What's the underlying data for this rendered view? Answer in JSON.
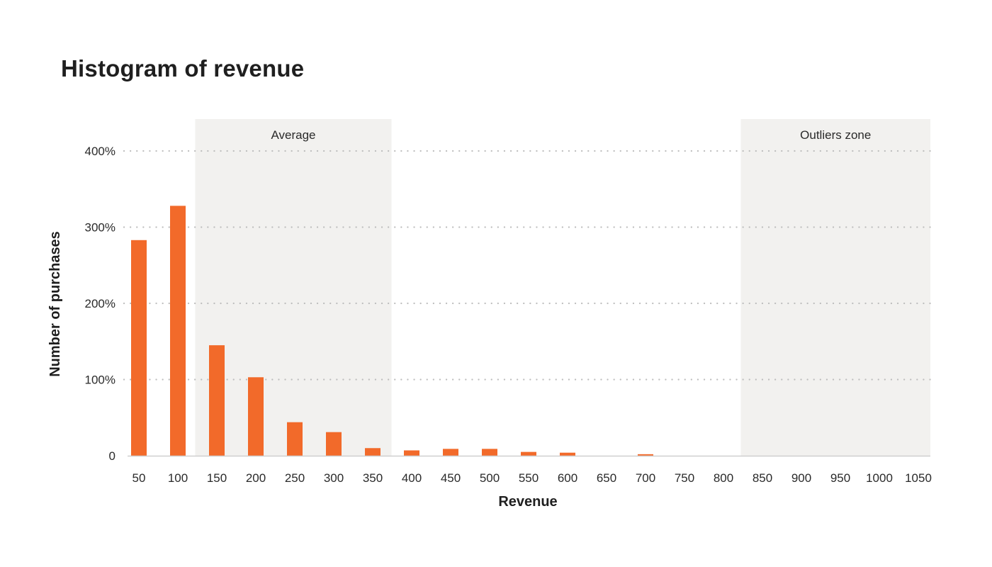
{
  "chart_data": {
    "type": "bar",
    "title": "Histogram of revenue",
    "xlabel": "Revenue",
    "ylabel": "Number of purchases",
    "categories": [
      "50",
      "100",
      "150",
      "200",
      "250",
      "300",
      "350",
      "400",
      "450",
      "500",
      "550",
      "600",
      "650",
      "700",
      "750",
      "800",
      "850",
      "900",
      "950",
      "1000",
      "1050"
    ],
    "values": [
      283,
      328,
      145,
      103,
      44,
      31,
      10,
      7,
      9,
      9,
      5,
      4,
      0,
      2,
      0,
      0,
      0,
      0,
      0,
      0,
      0
    ],
    "ylim": [
      0,
      400
    ],
    "yticks": [
      0,
      100,
      200,
      300,
      400
    ],
    "ytick_labels": [
      "0",
      "100%",
      "200%",
      "300%",
      "400%"
    ],
    "grid": "horizontal dotted",
    "bar_color": "#F26A2A",
    "zones": [
      {
        "label": "Average",
        "from_category": "150",
        "to_category": "350"
      },
      {
        "label": "Outliers zone",
        "from_category": "850",
        "to_category": "1050"
      }
    ],
    "zone_color": "#F2F1EF"
  }
}
